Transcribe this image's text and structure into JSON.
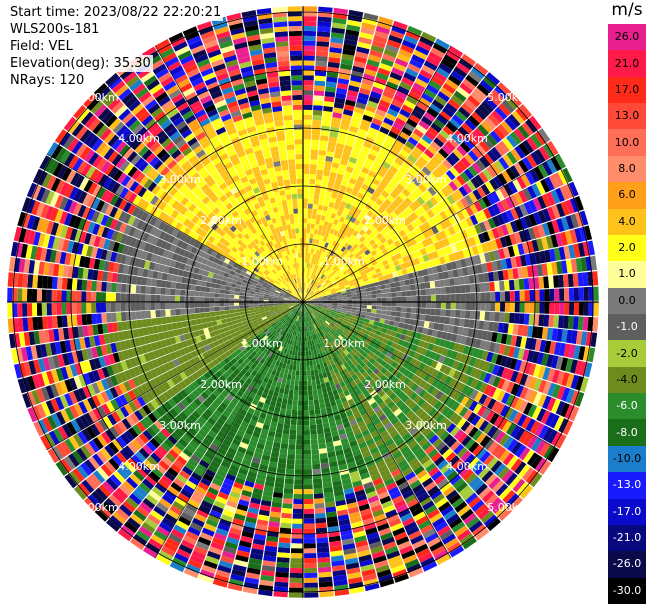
{
  "info": {
    "start_time": "Start time: 2023/08/22 22:20:21",
    "instrument": "WLS200s-181",
    "field": "Field: VEL",
    "elevation": "Elevation(deg): 35.30",
    "nrays": "NRays: 120"
  },
  "colorbar": {
    "unit": "m/s",
    "levels": [
      {
        "label": "26.0",
        "color": "#e91e8f"
      },
      {
        "label": "21.0",
        "color": "#ff1a4a"
      },
      {
        "label": "17.0",
        "color": "#ff2a1a"
      },
      {
        "label": "13.0",
        "color": "#ff4a3a"
      },
      {
        "label": "10.0",
        "color": "#ff6e58"
      },
      {
        "label": "8.0",
        "color": "#ff8c6a"
      },
      {
        "label": "6.0",
        "color": "#ff9f1a"
      },
      {
        "label": "4.0",
        "color": "#ffc21a"
      },
      {
        "label": "2.0",
        "color": "#ffff1a"
      },
      {
        "label": "1.0",
        "color": "#ffff9a"
      },
      {
        "label": "0.0",
        "color": "#7a7a7a"
      },
      {
        "label": "-1.0",
        "color": "#5e5e5e"
      },
      {
        "label": "-2.0",
        "color": "#a6cc3a"
      },
      {
        "label": "-4.0",
        "color": "#6e8c1e"
      },
      {
        "label": "-6.0",
        "color": "#2a8c2a"
      },
      {
        "label": "-8.0",
        "color": "#1a6e1a"
      },
      {
        "label": "-10.0",
        "color": "#1a7ecc"
      },
      {
        "label": "-13.0",
        "color": "#1a1aff"
      },
      {
        "label": "-17.0",
        "color": "#0a0acc"
      },
      {
        "label": "-21.0",
        "color": "#08087e"
      },
      {
        "label": "-26.0",
        "color": "#0a0a4a"
      },
      {
        "label": "-30.0",
        "color": "#000000"
      }
    ]
  },
  "chart_data": {
    "type": "heatmap",
    "projection": "polar PPI",
    "field": "VEL",
    "units": "m/s",
    "nrays": 120,
    "rings_km": [
      1.0,
      2.0,
      3.0,
      4.0,
      5.0
    ],
    "range_labels": [
      "1.00km",
      "2.00km",
      "3.00km",
      "4.00km",
      "5.00km"
    ],
    "clean_range_km": 3.3,
    "noise_range_km": 5.1,
    "sectors": [
      {
        "azimuth_range_deg": [
          300,
          360
        ],
        "range_km": [
          0,
          3.3
        ],
        "velocity_ms": [
          2,
          6
        ]
      },
      {
        "azimuth_range_deg": [
          0,
          75
        ],
        "range_km": [
          0,
          3.3
        ],
        "velocity_ms": [
          2,
          6
        ]
      },
      {
        "azimuth_range_deg": [
          75,
          105
        ],
        "range_km": [
          0,
          3.3
        ],
        "velocity_ms": [
          -1,
          1
        ]
      },
      {
        "azimuth_range_deg": [
          105,
          160
        ],
        "range_km": [
          0,
          3.3
        ],
        "velocity_ms": [
          -6,
          -2
        ]
      },
      {
        "azimuth_range_deg": [
          160,
          235
        ],
        "range_km": [
          0,
          3.3
        ],
        "velocity_ms": [
          -8,
          -4
        ]
      },
      {
        "azimuth_range_deg": [
          235,
          265
        ],
        "range_km": [
          0,
          3.3
        ],
        "velocity_ms": [
          -4,
          -2
        ]
      },
      {
        "azimuth_range_deg": [
          265,
          300
        ],
        "range_km": [
          0,
          3.3
        ],
        "velocity_ms": [
          -1,
          1
        ]
      }
    ]
  }
}
